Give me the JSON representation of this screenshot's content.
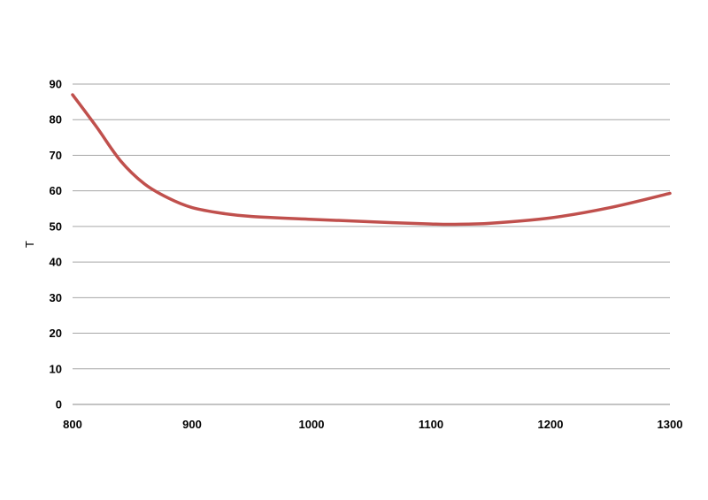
{
  "chart_data": {
    "type": "line",
    "title": "",
    "xlabel": "",
    "ylabel": "T",
    "xlim": [
      800,
      1300
    ],
    "ylim": [
      0,
      90
    ],
    "xticks": [
      800,
      900,
      1000,
      1100,
      1200,
      1300
    ],
    "yticks": [
      0,
      10,
      20,
      30,
      40,
      50,
      60,
      70,
      80,
      90
    ],
    "grid": "horizontal",
    "legend": "none",
    "series": [
      {
        "color": "#c0504d",
        "x": [
          800,
          820,
          840,
          860,
          880,
          900,
          925,
          950,
          1000,
          1050,
          1100,
          1120,
          1150,
          1200,
          1250,
          1300
        ],
        "y": [
          87,
          78,
          68.5,
          62,
          58,
          55.3,
          53.7,
          52.8,
          52,
          51.3,
          50.7,
          50.6,
          50.9,
          52.4,
          55.3,
          59.3
        ]
      }
    ]
  }
}
